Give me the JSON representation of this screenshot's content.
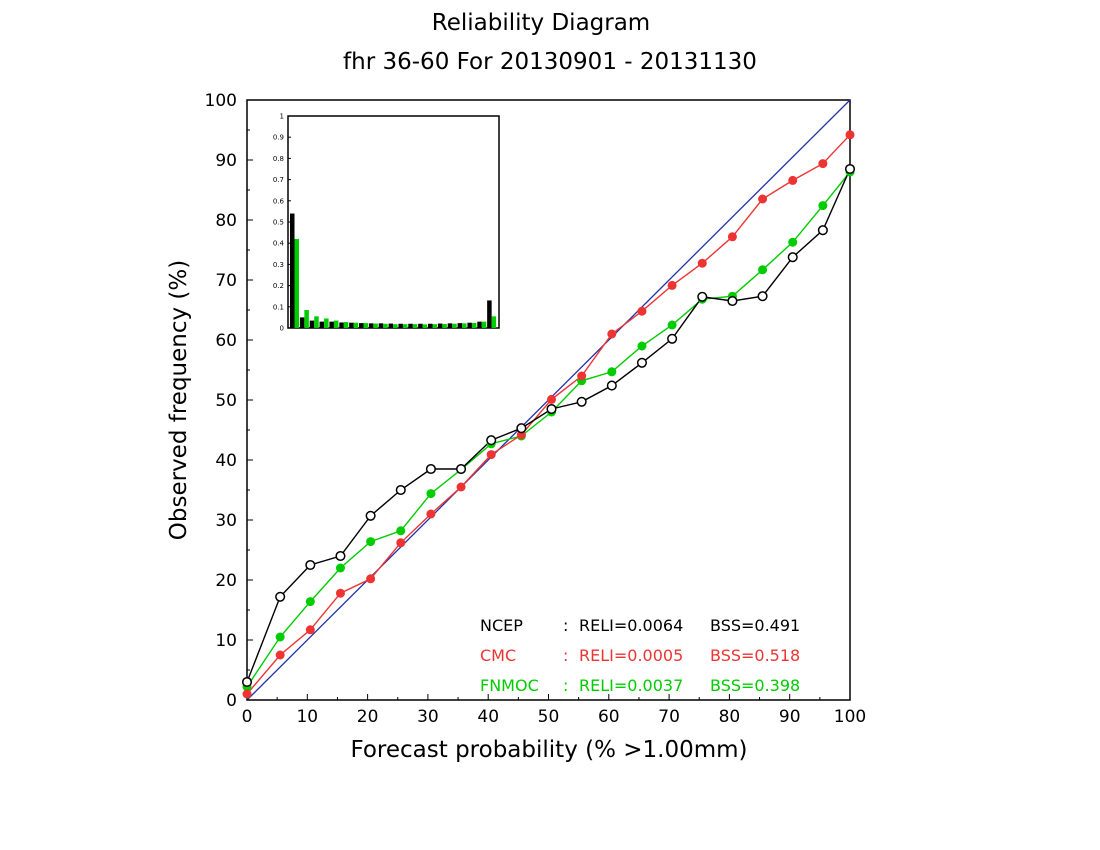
{
  "chart_data": {
    "type": "line",
    "title": "Reliability Diagram",
    "subtitle": "fhr 36-60 For 20130901 - 20131130",
    "xlabel": "Forecast probability (% >1.00mm)",
    "ylabel": "Observed frequency (%)",
    "xlim": [
      0,
      100
    ],
    "ylim": [
      0,
      100
    ],
    "x_ticks": [
      "0",
      "10",
      "20",
      "30",
      "40",
      "50",
      "60",
      "70",
      "80",
      "90",
      "100"
    ],
    "y_ticks": [
      "0",
      "10",
      "20",
      "30",
      "40",
      "50",
      "60",
      "70",
      "80",
      "90",
      "100"
    ],
    "grid": false,
    "diagonal_color": "#2233aa",
    "x": [
      0,
      5.5,
      10.5,
      15.5,
      20.5,
      25.5,
      30.5,
      35.5,
      40.5,
      45.5,
      50.5,
      55.5,
      60.5,
      65.5,
      70.5,
      75.5,
      80.5,
      85.5,
      90.5,
      95.5,
      100
    ],
    "series": [
      {
        "name": "NCEP",
        "color": "#000000",
        "marker": "open-circle",
        "values": [
          3,
          17.2,
          22.5,
          24,
          30.7,
          35,
          38.5,
          38.5,
          43.3,
          45.3,
          48.5,
          49.7,
          52.4,
          56.2,
          60.2,
          67.2,
          66.5,
          67.3,
          73.8,
          78.3,
          88.5
        ],
        "reli": "RELI=0.0064",
        "bss": "BSS=0.491"
      },
      {
        "name": "CMC",
        "color": "#ee3333",
        "marker": "filled-circle",
        "values": [
          1,
          7.5,
          11.7,
          17.8,
          20.2,
          26.2,
          31,
          35.5,
          40.9,
          44.2,
          50.1,
          54,
          61,
          64.8,
          69.1,
          72.8,
          77.2,
          83.5,
          86.6,
          89.4,
          94.2
        ],
        "reli": "RELI=0.0005",
        "bss": "BSS=0.518"
      },
      {
        "name": "FNMOC",
        "color": "#00cc00",
        "marker": "filled-circle",
        "values": [
          2.2,
          10.5,
          16.4,
          22,
          26.4,
          28.2,
          34.4,
          38.4,
          42.7,
          44,
          48,
          53.2,
          54.7,
          59,
          62.5,
          66.8,
          67.3,
          71.7,
          76.3,
          82.4,
          88
        ],
        "reli": "RELI=0.0037",
        "bss": "BSS=0.398"
      }
    ],
    "inset": {
      "type": "bar",
      "ylim": [
        0,
        1
      ],
      "y_ticks": [
        "0",
        "0.1",
        "0.2",
        "0.3",
        "0.4",
        "0.5",
        "0.6",
        "0.7",
        "0.8",
        "0.9",
        "1"
      ],
      "series": [
        {
          "name": "NCEP",
          "color": "#000000",
          "values": [
            0.54,
            0.05,
            0.035,
            0.03,
            0.03,
            0.026,
            0.025,
            0.023,
            0.022,
            0.022,
            0.021,
            0.02,
            0.02,
            0.02,
            0.02,
            0.021,
            0.022,
            0.023,
            0.025,
            0.03,
            0.13
          ]
        },
        {
          "name": "FNMOC",
          "color": "#00cc00",
          "values": [
            0.42,
            0.085,
            0.055,
            0.045,
            0.035,
            0.028,
            0.025,
            0.023,
            0.021,
            0.02,
            0.018,
            0.018,
            0.018,
            0.017,
            0.018,
            0.019,
            0.02,
            0.022,
            0.024,
            0.03,
            0.055
          ]
        }
      ]
    }
  }
}
